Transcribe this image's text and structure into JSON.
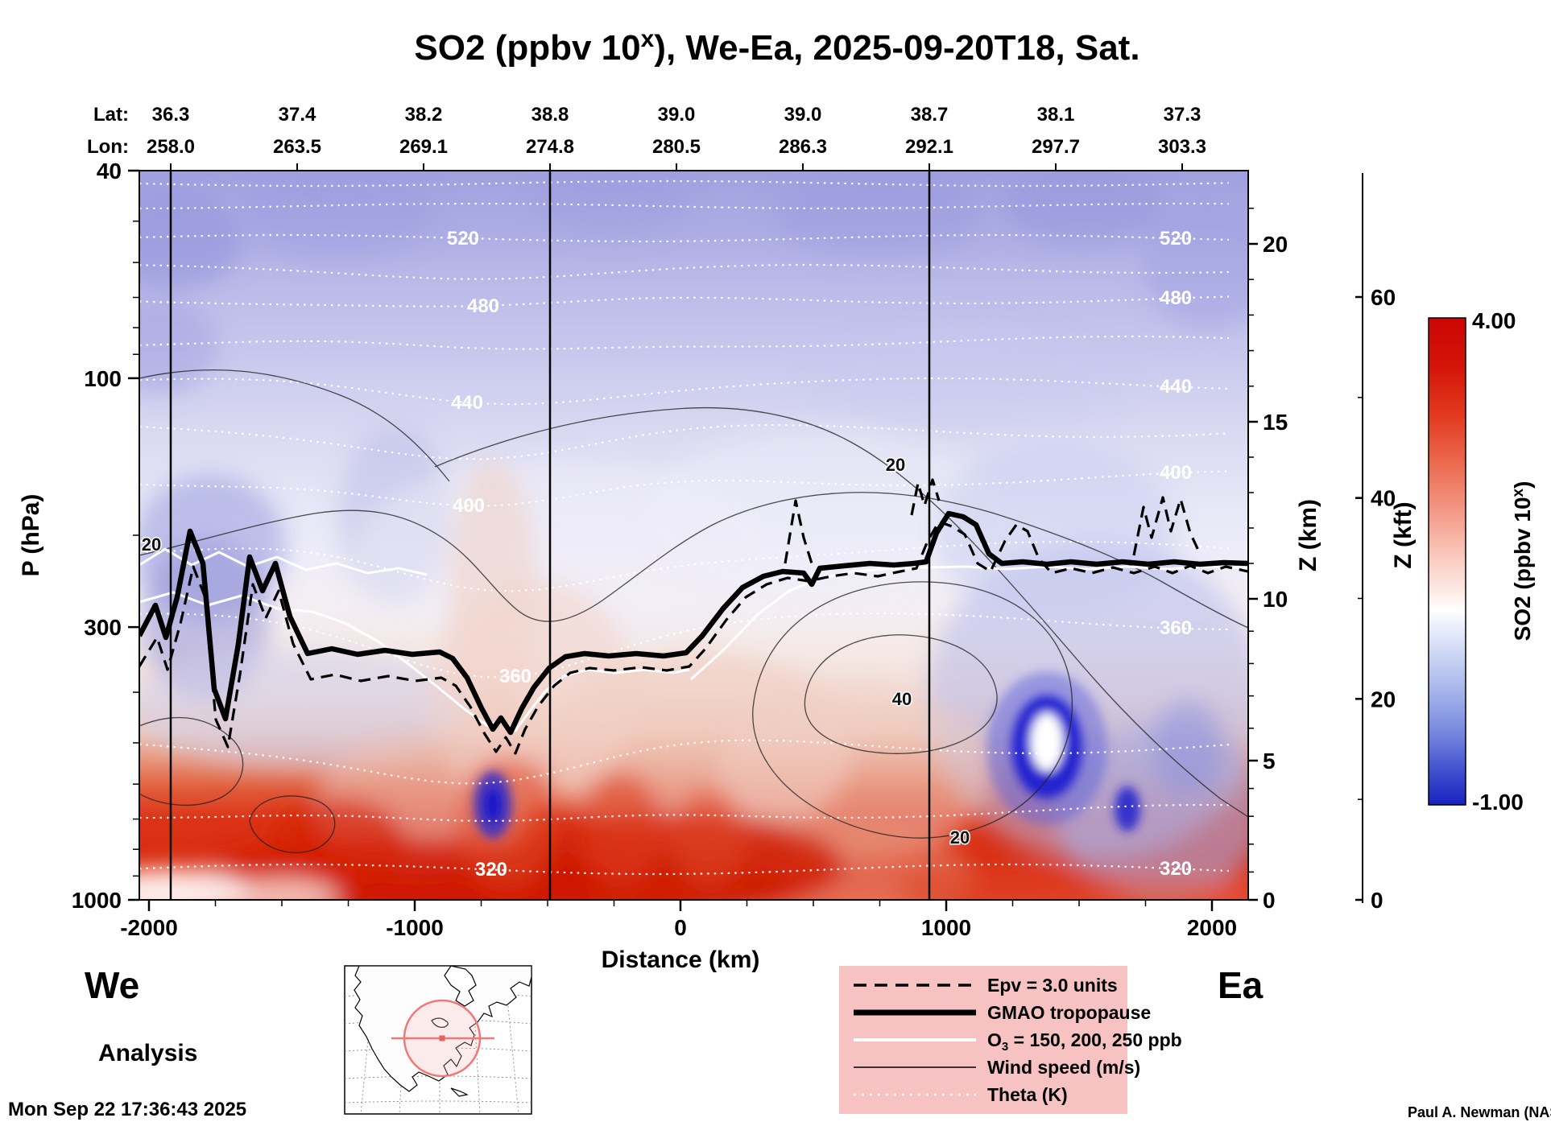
{
  "title": {
    "prefix": "SO2 (ppbv 10",
    "sup": "x",
    "suffix": "), We-Ea, 2025-09-20T18, Sat."
  },
  "top_axis": {
    "lat_label": "Lat:",
    "lon_label": "Lon:",
    "lat": [
      "36.3",
      "37.4",
      "38.2",
      "38.8",
      "39.0",
      "39.0",
      "38.7",
      "38.1",
      "37.3"
    ],
    "lon": [
      "258.0",
      "263.5",
      "269.1",
      "274.8",
      "280.5",
      "286.3",
      "292.1",
      "297.7",
      "303.3"
    ]
  },
  "axes": {
    "pressure": {
      "label": "P (hPa)",
      "ticks": [
        "40",
        "100",
        "300",
        "1000"
      ]
    },
    "distance": {
      "label": "Distance (km)",
      "ticks": [
        "-2000",
        "-1000",
        "0",
        "1000",
        "2000"
      ]
    },
    "z_km": {
      "label": "Z (km)",
      "ticks": [
        "20",
        "15",
        "10",
        "5",
        "0"
      ]
    },
    "z_kft": {
      "label": "Z (kft)",
      "ticks": [
        "60",
        "40",
        "20",
        "0"
      ]
    }
  },
  "colorbar": {
    "max": "4.00",
    "min": "-1.00",
    "label_prefix": "SO2 (ppbv 10",
    "label_sup": "x",
    "label_suffix": ")"
  },
  "contour_labels": {
    "theta_left": [
      "520",
      "480",
      "440",
      "400",
      "360",
      "320"
    ],
    "theta_right": [
      "520",
      "480",
      "440",
      "400",
      "360",
      "320"
    ],
    "wind": [
      "20",
      "20",
      "40",
      "20"
    ]
  },
  "legend": {
    "items": [
      {
        "label": "Epv = 3.0 units"
      },
      {
        "label": "GMAO tropopause"
      },
      {
        "o3_prefix": "O",
        "o3_sub": "3",
        "o3_suffix": " = 150, 200, 250 ppb"
      },
      {
        "label": "Wind speed (m/s)"
      },
      {
        "label": "Theta (K)"
      }
    ]
  },
  "corners": {
    "we": "We",
    "ea": "Ea",
    "analysis": "Analysis",
    "timestamp": "Mon Sep 22 17:36:43 2025",
    "credit": "Paul A. Newman (NASA"
  },
  "colors": {
    "legend_bg": "#f6c2c2",
    "map_marker": "#f07878",
    "colorbar_top": "#cc0605",
    "colorbar_bottom": "#1722c0"
  },
  "chart_data": {
    "type": "heatmap",
    "title": "SO2 (ppbv 10^x), We-Ea, 2025-09-20T18, Sat.",
    "variable": "SO2",
    "units": "ppbv 10^x",
    "valid_time": "2025-09-20T18",
    "day": "Sat",
    "analysis_type": "Analysis",
    "section": {
      "start_label": "We",
      "end_label": "Ea"
    },
    "xlabel": "Distance (km)",
    "x_ticks": [
      -2000,
      -1000,
      0,
      1000,
      2000
    ],
    "y_left_label": "P (hPa)",
    "y_left_ticks": [
      40,
      100,
      300,
      1000
    ],
    "y_left_scale": "log",
    "y_left_range": [
      40,
      1000
    ],
    "y_right_label": "Z (km)",
    "y_right_ticks": [
      20,
      15,
      10,
      5,
      0
    ],
    "y_right2_label": "Z (kft)",
    "y_right2_ticks": [
      60,
      40,
      20,
      0
    ],
    "colorbar": {
      "label": "SO2 (ppbv 10^x)",
      "min": -1.0,
      "max": 4.0,
      "scheme": "blue-white-red"
    },
    "transect_waypoints": {
      "lat": [
        36.3,
        37.4,
        38.2,
        38.8,
        39.0,
        39.0,
        38.7,
        38.1,
        37.3
      ],
      "lon": [
        258.0,
        263.5,
        269.1,
        274.8,
        280.5,
        286.3,
        292.1,
        297.7,
        303.3
      ]
    },
    "theta_contours_K": [
      320,
      360,
      400,
      440,
      480,
      520
    ],
    "wind_contours_ms": [
      20,
      40
    ],
    "overlays": [
      "Epv = 3.0 units",
      "GMAO tropopause",
      "O3 = 150, 200, 250 ppb",
      "Wind speed (m/s)",
      "Theta (K)"
    ],
    "gmao_tropopause_approx": {
      "x_km": [
        -2000,
        -1500,
        -1000,
        -700,
        -400,
        0,
        400,
        800,
        1000,
        1300,
        2000
      ],
      "p_hPa": [
        310,
        330,
        335,
        470,
        335,
        335,
        250,
        228,
        185,
        226,
        226
      ]
    },
    "field_summary": "Boundary-layer SO2 maximum (red) below ~700 hPa across the transect, strongest near the surface from -2000 to +500 km; deep-blue localized minima near +1300 to +1600 km at 400-600 hPa; stratosphere uniformly light blue-violet.",
    "plotted_timestamp": "Mon Sep 22 17:36:43 2025",
    "credit": "Paul A. Newman (NASA"
  }
}
